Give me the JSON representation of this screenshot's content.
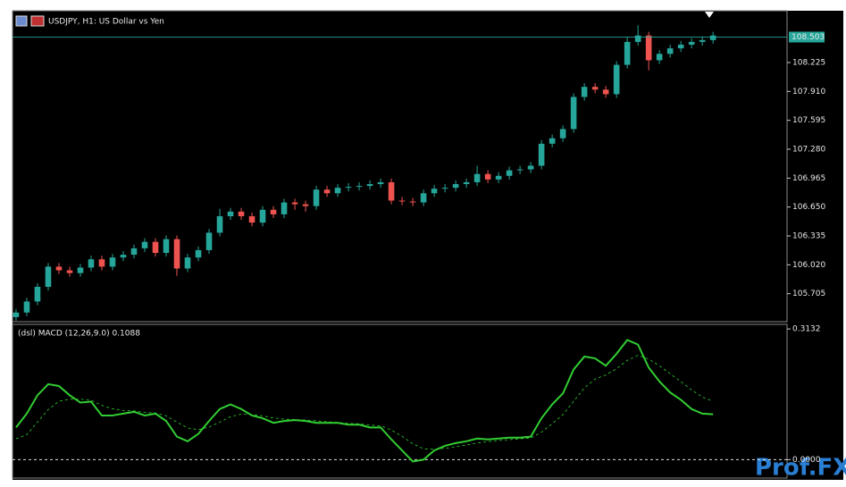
{
  "chart_data": [
    {
      "type": "candlestick",
      "title": "USDJPY, H1:  US Dollar vs Yen",
      "x": [
        0,
        1,
        2,
        3,
        4,
        5,
        6,
        7,
        8,
        9,
        10,
        11,
        12,
        13,
        14,
        15,
        16,
        17,
        18,
        19,
        20,
        21,
        22,
        23,
        24,
        25,
        26,
        27,
        28,
        29,
        30,
        31,
        32,
        33,
        34,
        35,
        36,
        37,
        38,
        39,
        40,
        41,
        42,
        43,
        44,
        45,
        46,
        47,
        48,
        49,
        50,
        51,
        52,
        53,
        54,
        55,
        56,
        57,
        58,
        59,
        60,
        61,
        62,
        63,
        64,
        65
      ],
      "open": [
        105.45,
        105.5,
        105.62,
        105.78,
        106.0,
        105.96,
        105.93,
        105.99,
        106.08,
        106.0,
        106.1,
        106.13,
        106.2,
        106.27,
        106.15,
        106.3,
        105.98,
        106.1,
        106.18,
        106.37,
        106.55,
        106.6,
        106.55,
        106.48,
        106.62,
        106.57,
        106.7,
        106.68,
        106.66,
        106.84,
        106.8,
        106.86,
        106.87,
        106.88,
        106.9,
        106.92,
        106.72,
        106.71,
        106.7,
        106.8,
        106.85,
        106.86,
        106.9,
        106.92,
        107.01,
        106.95,
        106.99,
        107.05,
        107.06,
        107.1,
        107.34,
        107.4,
        107.5,
        107.85,
        107.96,
        107.93,
        107.88,
        108.2,
        108.45,
        108.52,
        108.25,
        108.32,
        108.38,
        108.42,
        108.45,
        108.47
      ],
      "high": [
        105.54,
        105.66,
        105.82,
        106.04,
        106.04,
        106.0,
        106.03,
        106.12,
        106.12,
        106.14,
        106.17,
        106.24,
        106.31,
        106.31,
        106.34,
        106.34,
        106.14,
        106.22,
        106.41,
        106.63,
        106.64,
        106.64,
        106.59,
        106.66,
        106.66,
        106.74,
        106.74,
        106.72,
        106.88,
        106.88,
        106.9,
        106.91,
        106.92,
        106.94,
        106.96,
        106.96,
        106.76,
        106.75,
        106.84,
        106.89,
        106.9,
        106.94,
        106.96,
        107.1,
        107.05,
        107.03,
        107.09,
        107.1,
        107.14,
        107.38,
        107.44,
        107.54,
        107.89,
        108.0,
        108.0,
        107.97,
        108.24,
        108.5,
        108.63,
        108.56,
        108.36,
        108.42,
        108.46,
        108.49,
        108.51,
        108.56
      ],
      "low": [
        105.41,
        105.46,
        105.58,
        105.74,
        105.92,
        105.89,
        105.89,
        105.95,
        105.96,
        105.96,
        106.06,
        106.09,
        106.16,
        106.11,
        106.11,
        105.9,
        105.94,
        106.06,
        106.14,
        106.33,
        106.51,
        106.51,
        106.44,
        106.44,
        106.53,
        106.53,
        106.62,
        106.6,
        106.62,
        106.76,
        106.76,
        106.82,
        106.83,
        106.84,
        106.86,
        106.68,
        106.67,
        106.66,
        106.66,
        106.76,
        106.81,
        106.82,
        106.86,
        106.88,
        106.91,
        106.91,
        106.95,
        107.01,
        107.02,
        107.06,
        107.3,
        107.36,
        107.46,
        107.81,
        107.89,
        107.84,
        107.84,
        108.16,
        108.41,
        108.14,
        108.21,
        108.28,
        108.34,
        108.38,
        108.41,
        108.43
      ],
      "close": [
        105.5,
        105.62,
        105.78,
        106.0,
        105.96,
        105.93,
        105.99,
        106.08,
        106.0,
        106.1,
        106.13,
        106.2,
        106.27,
        106.15,
        106.3,
        105.98,
        106.1,
        106.18,
        106.37,
        106.55,
        106.6,
        106.55,
        106.48,
        106.62,
        106.57,
        106.7,
        106.68,
        106.66,
        106.84,
        106.8,
        106.86,
        106.87,
        106.88,
        106.9,
        106.92,
        106.72,
        106.71,
        106.7,
        106.8,
        106.85,
        106.86,
        106.9,
        106.92,
        107.01,
        106.95,
        106.99,
        107.05,
        107.06,
        107.1,
        107.34,
        107.4,
        107.5,
        107.85,
        107.96,
        107.93,
        107.88,
        108.2,
        108.45,
        108.52,
        108.25,
        108.32,
        108.38,
        108.42,
        108.45,
        108.47,
        108.52
      ],
      "up_color": "#26a69a",
      "down_color": "#ef5350",
      "xlim": [
        -0.33,
        71.9
      ],
      "ylim": [
        105.4,
        108.79
      ],
      "yticks": [
        108.225,
        {
          "value": 107.91,
          "label": "107.910"
        },
        107.595,
        {
          "value": 107.28,
          "label": "107.280"
        },
        106.965,
        {
          "value": 106.65,
          "label": "106.650"
        },
        106.335,
        {
          "value": 106.02,
          "label": "106.020"
        },
        105.705
      ],
      "current_price": 108.503,
      "current_price_color": "#26a69a"
    },
    {
      "type": "line",
      "title": "(dsl) MACD (12,26,9.0) 0.1088",
      "x": [
        0,
        1,
        2,
        3,
        4,
        5,
        6,
        7,
        8,
        9,
        10,
        11,
        12,
        13,
        14,
        15,
        16,
        17,
        18,
        19,
        20,
        21,
        22,
        23,
        24,
        25,
        26,
        27,
        28,
        29,
        30,
        31,
        32,
        33,
        34,
        35,
        36,
        37,
        38,
        39,
        40,
        41,
        42,
        43,
        44,
        45,
        46,
        47,
        48,
        49,
        50,
        51,
        52,
        53,
        54,
        55,
        56,
        57,
        58,
        59,
        60,
        61,
        62,
        63,
        64,
        65
      ],
      "series": [
        {
          "name": "MACD",
          "color": "#32cd32",
          "dash": false,
          "values": [
            0.0772,
            0.1103,
            0.1544,
            0.1809,
            0.1765,
            0.1544,
            0.1368,
            0.139,
            0.1059,
            0.1059,
            0.1103,
            0.1147,
            0.1059,
            0.1103,
            0.0927,
            0.0552,
            0.0441,
            0.0618,
            0.0927,
            0.1213,
            0.1324,
            0.1213,
            0.1059,
            0.0993,
            0.0882,
            0.0927,
            0.0949,
            0.0927,
            0.0882,
            0.0882,
            0.0882,
            0.0838,
            0.0838,
            0.0772,
            0.0772,
            0.0485,
            0.0221,
            -0.0044,
            0.0,
            0.0221,
            0.0331,
            0.0397,
            0.0441,
            0.0507,
            0.0485,
            0.0507,
            0.0529,
            0.0529,
            0.0552,
            0.0993,
            0.1324,
            0.1588,
            0.2162,
            0.2471,
            0.2427,
            0.225,
            0.2537,
            0.2868,
            0.2758,
            0.2206,
            0.1875,
            0.161,
            0.1434,
            0.1213,
            0.1103,
            0.1088
          ]
        },
        {
          "name": "Signal",
          "color": "#32cd32",
          "dash": true,
          "values": [
            0.05,
            0.06,
            0.09,
            0.12,
            0.14,
            0.145,
            0.145,
            0.142,
            0.13,
            0.122,
            0.118,
            0.117,
            0.113,
            0.112,
            0.105,
            0.09,
            0.076,
            0.072,
            0.078,
            0.09,
            0.103,
            0.109,
            0.108,
            0.105,
            0.1,
            0.097,
            0.096,
            0.095,
            0.093,
            0.091,
            0.089,
            0.087,
            0.086,
            0.083,
            0.081,
            0.071,
            0.056,
            0.038,
            0.026,
            0.025,
            0.027,
            0.031,
            0.035,
            0.04,
            0.043,
            0.046,
            0.048,
            0.05,
            0.052,
            0.066,
            0.086,
            0.108,
            0.14,
            0.172,
            0.193,
            0.203,
            0.218,
            0.238,
            0.25,
            0.241,
            0.225,
            0.206,
            0.187,
            0.167,
            0.15,
            0.14
          ]
        }
      ],
      "xlim": [
        -0.33,
        71.9
      ],
      "ylim": [
        -0.0441,
        0.3242
      ],
      "yticks": [
        0.3132,
        {
          "value": 0,
          "label": "0.0000"
        }
      ]
    }
  ],
  "watermark": "Prof.FX"
}
